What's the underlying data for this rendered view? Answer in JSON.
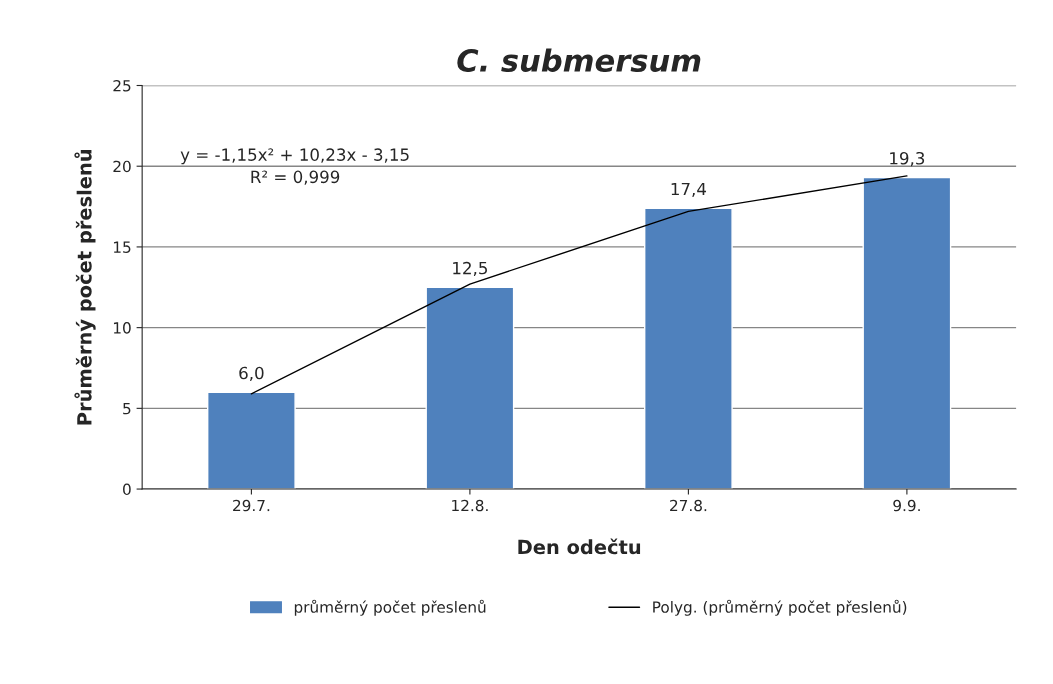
{
  "chart_data": {
    "type": "bar",
    "title": "C. submersum",
    "xlabel": "Den odečtu",
    "ylabel": "Průměrný počet přeslenů",
    "categories": [
      "29.7.",
      "12.8.",
      "27.8.",
      "9.9."
    ],
    "series": [
      {
        "name": "průměrný počet přeslenů",
        "color": "#4f81bd",
        "values": [
          6.0,
          12.5,
          17.4,
          19.3
        ],
        "value_labels": [
          "6,0",
          "12,5",
          "17,4",
          "19,3"
        ]
      },
      {
        "name": "Polyg. (průměrný počet přeslenů)",
        "type": "line",
        "color": "#000000",
        "x": [
          "29.7.",
          "12.8.",
          "27.8.",
          "9.9."
        ],
        "values": [
          5.9,
          12.7,
          17.2,
          19.4
        ]
      }
    ],
    "annotations": [
      "y = -1,15x² + 10,23x - 3,15",
      "R² = 0,999"
    ],
    "ylim": [
      0,
      25
    ],
    "yticks": [
      0,
      5,
      10,
      15,
      20,
      25
    ],
    "grid": "y",
    "legend": "bottom",
    "marker": "none",
    "line_style": "solid"
  }
}
